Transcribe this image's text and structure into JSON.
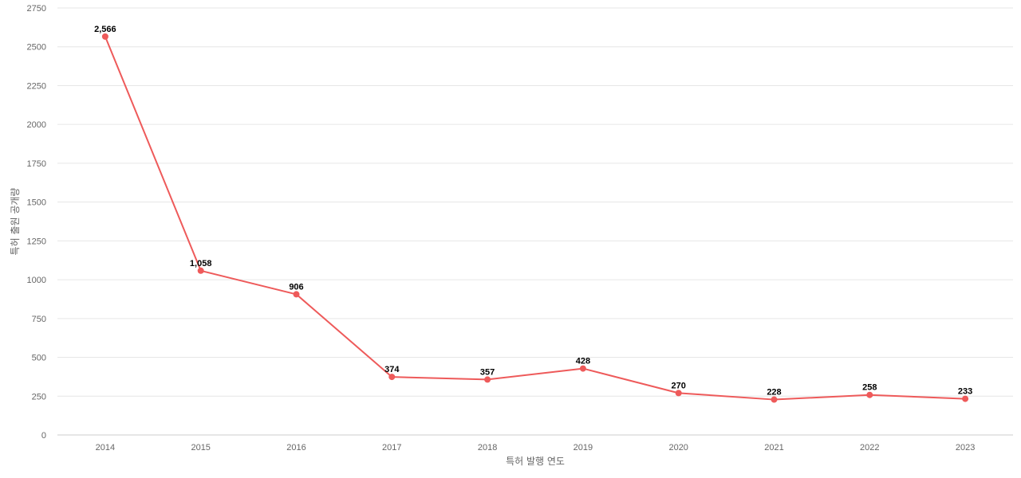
{
  "chart_data": {
    "type": "line",
    "xlabel": "특허 발행 연도",
    "ylabel": "특허 출원 공개량",
    "categories": [
      "2014",
      "2015",
      "2016",
      "2017",
      "2018",
      "2019",
      "2020",
      "2021",
      "2022",
      "2023"
    ],
    "series": [
      {
        "values": [
          2566,
          1058,
          906,
          374,
          357,
          428,
          270,
          228,
          258,
          233
        ],
        "labels": [
          "2,566",
          "1,058",
          "906",
          "374",
          "357",
          "428",
          "270",
          "228",
          "258",
          "233"
        ],
        "color": "#ee5a5a"
      }
    ],
    "y_ticks": [
      "0",
      "250",
      "500",
      "750",
      "1000",
      "1250",
      "1500",
      "1750",
      "2000",
      "2250",
      "2500",
      "2750"
    ],
    "ylim": [
      0,
      2750
    ],
    "grid": true,
    "legend": "none"
  }
}
